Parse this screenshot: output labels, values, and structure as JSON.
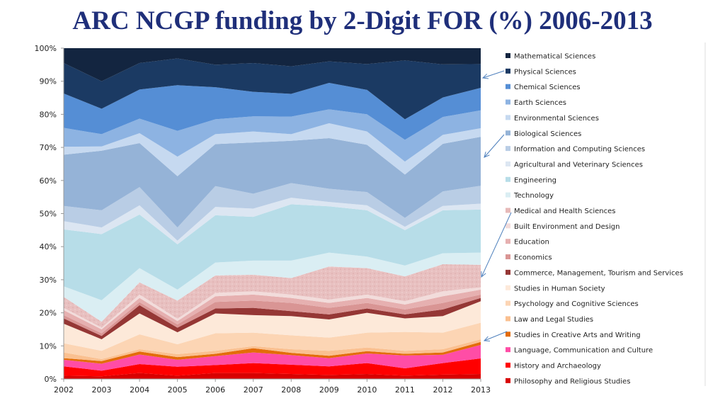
{
  "title": "ARC NCGP funding by 2-Digit FOR (%) 2006-2013",
  "chart_data": {
    "type": "area",
    "stacked": true,
    "normalized": true,
    "title": "ARC NCGP funding by 2-Digit FOR (%) 2006-2013",
    "xlabel": "",
    "ylabel": "",
    "x": [
      "2002",
      "2003",
      "2004",
      "2005",
      "2006",
      "2007",
      "2008",
      "2009",
      "2010",
      "2011",
      "2012",
      "2013"
    ],
    "ylim": [
      0,
      100
    ],
    "yticks": [
      "0%",
      "10%",
      "20%",
      "30%",
      "40%",
      "50%",
      "60%",
      "70%",
      "80%",
      "90%",
      "100%"
    ],
    "legend_position": "right",
    "grid": false,
    "series": [
      {
        "name": "Philosophy and Religious Studies",
        "color": "#d80000",
        "values": [
          1,
          0.8,
          1.8,
          1,
          1.8,
          1.8,
          1.5,
          1.2,
          1.5,
          1,
          1.3,
          1.5
        ]
      },
      {
        "name": "History and Archaeology",
        "color": "#ff0000",
        "values": [
          2.8,
          1.7,
          2.7,
          2.7,
          2.4,
          3.0,
          2.8,
          2.6,
          3.3,
          2.2,
          3.5,
          4.7
        ]
      },
      {
        "name": "Language, Communication and Culture",
        "color": "#ff4da6",
        "values": [
          2.0,
          2.1,
          2.9,
          2.1,
          2.7,
          3.2,
          2.9,
          2.5,
          2.9,
          3.9,
          2.5,
          4.1
        ]
      },
      {
        "name": "Studies in Creative Arts and Writing",
        "color": "#e36c09",
        "values": [
          0.5,
          0.8,
          0.9,
          0.8,
          0.7,
          1.3,
          0.7,
          0.7,
          0.7,
          0.5,
          0.7,
          0.9
        ]
      },
      {
        "name": "Law and Legal Studies",
        "color": "#fac090",
        "values": [
          1.7,
          0.6,
          0.7,
          0.9,
          0.9,
          0.6,
          1.1,
          1.5,
          1.1,
          0.9,
          1.0,
          0.8
        ]
      },
      {
        "name": "Psychology and Cognitive Sciences",
        "color": "#fcd5b4",
        "values": [
          2.8,
          2.5,
          4.5,
          3.0,
          5.3,
          4.1,
          4.2,
          4.0,
          4.5,
          5.7,
          5.0,
          5.0
        ]
      },
      {
        "name": "Studies in Human Society",
        "color": "#fde9d9",
        "values": [
          5.9,
          3.5,
          6.3,
          3.6,
          6.0,
          5.3,
          5.8,
          5.5,
          6.0,
          4.1,
          5.0,
          6.5
        ]
      },
      {
        "name": "Commerce, Management, Tourism and Services",
        "color": "#953735",
        "values": [
          1.6,
          1.0,
          2.5,
          1.4,
          1.5,
          2.2,
          1.5,
          1.5,
          1.3,
          1.2,
          2.0,
          1.0
        ]
      },
      {
        "name": "Economics",
        "color": "#d99594",
        "values": [
          1.0,
          0.8,
          0.9,
          1.0,
          2.0,
          2.2,
          2.5,
          2.0,
          1.7,
          1.5,
          2.0,
          1.0
        ]
      },
      {
        "name": "Education",
        "color": "#e6b0b0",
        "values": [
          1.5,
          1.2,
          1.3,
          1.0,
          1.7,
          1.8,
          1.5,
          1.5,
          1.5,
          1.5,
          2.0,
          1.5
        ]
      },
      {
        "name": "Built Environment and Design",
        "color": "#f2dcdb",
        "values": [
          0.7,
          0.5,
          1.0,
          0.7,
          1.0,
          1.0,
          1.0,
          1.0,
          1.0,
          1.0,
          1.5,
          0.7
        ]
      },
      {
        "name": "Medical and Health Sciences",
        "color": "#e8c0c0",
        "values": [
          3.3,
          1.8,
          3.7,
          5.5,
          5.3,
          5.0,
          5.0,
          10.0,
          8.0,
          7.5,
          8.2,
          6.8
        ]
      },
      {
        "name": "Technology",
        "color": "#daeef3",
        "values": [
          3.2,
          6.5,
          4.3,
          3.3,
          3.9,
          4.3,
          5.3,
          4.2,
          3.5,
          3.3,
          3.3,
          3.7
        ]
      },
      {
        "name": "Engineering",
        "color": "#b7dde8",
        "values": [
          17.2,
          20.0,
          16.2,
          13.7,
          14.3,
          13.2,
          17.0,
          14.0,
          14.0,
          10.7,
          13.0,
          13.0
        ]
      },
      {
        "name": "Agricultural and Veterinary Sciences",
        "color": "#dce6f2",
        "values": [
          2.5,
          2.0,
          2.8,
          1.1,
          2.5,
          2.5,
          2.0,
          1.3,
          1.5,
          1.0,
          1.3,
          1.8
        ]
      },
      {
        "name": "Information and Computing Sciences",
        "color": "#b9cde5",
        "values": [
          4.6,
          5.2,
          5.5,
          4.0,
          6.3,
          4.5,
          4.4,
          4.0,
          4.0,
          2.7,
          4.4,
          5.4
        ]
      },
      {
        "name": "Biological Sciences",
        "color": "#95b3d7",
        "values": [
          15.5,
          18.0,
          13.3,
          15.5,
          12.7,
          15.5,
          12.8,
          15.3,
          14.3,
          13.1,
          14.4,
          14.8
        ]
      },
      {
        "name": "Environmental Sciences",
        "color": "#c6d9f0",
        "values": [
          2.4,
          1.3,
          3.0,
          5.9,
          3.0,
          3.3,
          2.0,
          4.5,
          4.0,
          3.9,
          2.7,
          2.6
        ]
      },
      {
        "name": "Earth Sciences",
        "color": "#8db3e2",
        "values": [
          5.7,
          3.7,
          4.4,
          7.8,
          4.5,
          4.6,
          5.3,
          4.2,
          5.2,
          6.6,
          5.4,
          5.4
        ]
      },
      {
        "name": "Chemical Sciences",
        "color": "#558ed5",
        "values": [
          10.4,
          7.7,
          8.8,
          13.8,
          9.7,
          7.4,
          6.9,
          8.0,
          7.4,
          6.2,
          5.9,
          6.8
        ]
      },
      {
        "name": "Physical Sciences",
        "color": "#1b3a63",
        "values": [
          9.2,
          8.3,
          8.0,
          8.1,
          6.8,
          8.7,
          8.3,
          6.5,
          7.8,
          17.8,
          10.0,
          7.2
        ]
      },
      {
        "name": "Mathematical Sciences",
        "color": "#132540",
        "values": [
          4.5,
          10.0,
          4.5,
          3.1,
          5.0,
          4.5,
          5.5,
          4.0,
          4.8,
          3.7,
          4.9,
          4.8
        ]
      }
    ]
  }
}
